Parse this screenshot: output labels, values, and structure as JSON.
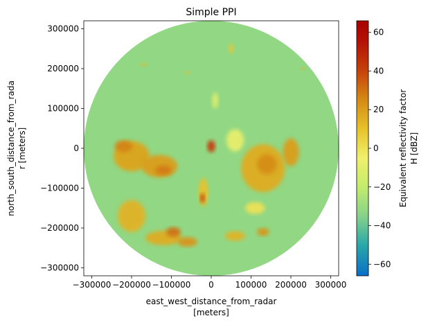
{
  "chart_data": {
    "type": "heatmap",
    "title": "Simple PPI",
    "xlabel_line1": "east_west_distance_from_radar",
    "xlabel_line2": "[meters]",
    "ylabel_line1": "north_south_distance_from_rada",
    "ylabel_line2": "r [meters]",
    "x_ticks": [
      {
        "value": -300000,
        "label": "−300000"
      },
      {
        "value": -200000,
        "label": "−200000"
      },
      {
        "value": -100000,
        "label": "−100000"
      },
      {
        "value": 0,
        "label": "0"
      },
      {
        "value": 100000,
        "label": "100000"
      },
      {
        "value": 200000,
        "label": "200000"
      },
      {
        "value": 300000,
        "label": "300000"
      }
    ],
    "y_ticks": [
      {
        "value": 300000,
        "label": "300000"
      },
      {
        "value": 200000,
        "label": "200000"
      },
      {
        "value": 100000,
        "label": "100000"
      },
      {
        "value": 0,
        "label": "0"
      },
      {
        "value": -100000,
        "label": "−100000"
      },
      {
        "value": -200000,
        "label": "−200000"
      },
      {
        "value": -300000,
        "label": "−300000"
      }
    ],
    "xlim": [
      -320000,
      320000
    ],
    "ylim": [
      -320000,
      320000
    ],
    "radar_range": 320000,
    "background_dbz": -32,
    "colorbar": {
      "label_line1": "Equivalent reflectivity factor",
      "label_line2": "H [dBZ]",
      "range": [
        -66,
        66
      ],
      "ticks": [
        {
          "value": 60,
          "label": "60"
        },
        {
          "value": 40,
          "label": "40"
        },
        {
          "value": 20,
          "label": "20"
        },
        {
          "value": 0,
          "label": "0"
        },
        {
          "value": -20,
          "label": "−20"
        },
        {
          "value": -40,
          "label": "−40"
        },
        {
          "value": -60,
          "label": "−60"
        }
      ],
      "stops": [
        {
          "value": -66,
          "color": "#0a6fc8"
        },
        {
          "value": -50,
          "color": "#2aa8a8"
        },
        {
          "value": -35,
          "color": "#86d28a"
        },
        {
          "value": -20,
          "color": "#c4ec6c"
        },
        {
          "value": -5,
          "color": "#f0f06c"
        },
        {
          "value": 10,
          "color": "#e6c22a"
        },
        {
          "value": 25,
          "color": "#d58a16"
        },
        {
          "value": 40,
          "color": "#c6420a"
        },
        {
          "value": 55,
          "color": "#b41206"
        },
        {
          "value": 66,
          "color": "#a80000"
        }
      ]
    },
    "echoes": [
      {
        "name": "west-cell",
        "x": -200000,
        "y": -20000,
        "rx": 45000,
        "ry": 38000,
        "dbz": 18
      },
      {
        "name": "west-cell-core",
        "x": -220000,
        "y": 5000,
        "rx": 22000,
        "ry": 15000,
        "dbz": 26
      },
      {
        "name": "west-central-cell",
        "x": -130000,
        "y": -45000,
        "rx": 45000,
        "ry": 28000,
        "dbz": 20
      },
      {
        "name": "west-central-core",
        "x": -120000,
        "y": -55000,
        "rx": 20000,
        "ry": 12000,
        "dbz": 28
      },
      {
        "name": "southwest-band",
        "x": -200000,
        "y": -170000,
        "rx": 35000,
        "ry": 40000,
        "dbz": 14
      },
      {
        "name": "south-band-1",
        "x": -120000,
        "y": -225000,
        "rx": 45000,
        "ry": 18000,
        "dbz": 16
      },
      {
        "name": "south-band-2",
        "x": -60000,
        "y": -235000,
        "rx": 25000,
        "ry": 12000,
        "dbz": 22
      },
      {
        "name": "south-cell-1",
        "x": -95000,
        "y": -210000,
        "rx": 18000,
        "ry": 12000,
        "dbz": 30
      },
      {
        "name": "near-south",
        "x": -20000,
        "y": -110000,
        "rx": 12000,
        "ry": 35000,
        "dbz": 10
      },
      {
        "name": "near-south-core",
        "x": -22000,
        "y": -125000,
        "rx": 6000,
        "ry": 12000,
        "dbz": 38
      },
      {
        "name": "center-clutter",
        "x": 0,
        "y": 5000,
        "rx": 10000,
        "ry": 15000,
        "dbz": 42
      },
      {
        "name": "east-cell",
        "x": 130000,
        "y": -50000,
        "rx": 55000,
        "ry": 60000,
        "dbz": 16
      },
      {
        "name": "east-cell-core",
        "x": 140000,
        "y": -40000,
        "rx": 25000,
        "ry": 25000,
        "dbz": 24
      },
      {
        "name": "east-outer",
        "x": 200000,
        "y": -10000,
        "rx": 20000,
        "ry": 35000,
        "dbz": 20
      },
      {
        "name": "southeast-cell",
        "x": 60000,
        "y": -220000,
        "rx": 25000,
        "ry": 12000,
        "dbz": 14
      },
      {
        "name": "southeast-cell-2",
        "x": 130000,
        "y": -210000,
        "rx": 15000,
        "ry": 10000,
        "dbz": 22
      },
      {
        "name": "southeast-scatter",
        "x": 110000,
        "y": -150000,
        "rx": 25000,
        "ry": 15000,
        "dbz": 0
      },
      {
        "name": "clear-air-north",
        "x": 10000,
        "y": 120000,
        "rx": 8000,
        "ry": 20000,
        "dbz": -12
      },
      {
        "name": "ring-east",
        "x": 60000,
        "y": 20000,
        "rx": 22000,
        "ry": 28000,
        "dbz": -8
      },
      {
        "name": "north-speck-1",
        "x": 50000,
        "y": 250000,
        "rx": 6000,
        "ry": 12000,
        "dbz": 8
      },
      {
        "name": "north-speck-2",
        "x": -170000,
        "y": 210000,
        "rx": 8000,
        "ry": 4000,
        "dbz": 12
      },
      {
        "name": "north-speck-3",
        "x": -60000,
        "y": 190000,
        "rx": 6000,
        "ry": 4000,
        "dbz": 10
      },
      {
        "name": "northeast-speck",
        "x": 230000,
        "y": 200000,
        "rx": 5000,
        "ry": 4000,
        "dbz": 14
      }
    ]
  }
}
